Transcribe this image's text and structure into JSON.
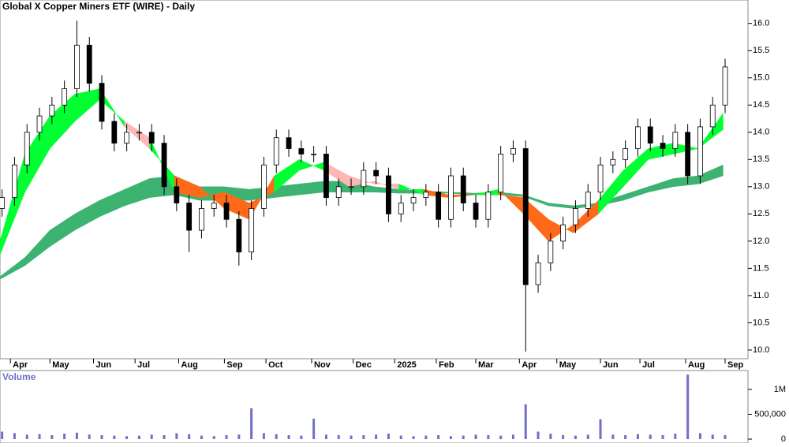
{
  "chart_data": {
    "type": "candlestick",
    "title": "Global X Copper Miners ETF (WIRE) - Daily",
    "volume_label": "Volume",
    "xlim": [
      0,
      360
    ],
    "xticks": [
      {
        "value": 5,
        "label": "Apr"
      },
      {
        "value": 24,
        "label": "May"
      },
      {
        "value": 45,
        "label": "Jun"
      },
      {
        "value": 65,
        "label": "Jul"
      },
      {
        "value": 86,
        "label": "Aug"
      },
      {
        "value": 108,
        "label": "Sep"
      },
      {
        "value": 128,
        "label": "Oct"
      },
      {
        "value": 150,
        "label": "Nov"
      },
      {
        "value": 170,
        "label": "Dec"
      },
      {
        "value": 190,
        "label": "2025"
      },
      {
        "value": 210,
        "label": "Feb"
      },
      {
        "value": 229,
        "label": "Mar"
      },
      {
        "value": 250,
        "label": "Apr"
      },
      {
        "value": 268,
        "label": "May"
      },
      {
        "value": 289,
        "label": "Jun"
      },
      {
        "value": 308,
        "label": "Jul"
      },
      {
        "value": 330,
        "label": "Aug"
      },
      {
        "value": 349,
        "label": "Sep"
      }
    ],
    "ylim": [
      9.84,
      16.43
    ],
    "yticks": [
      {
        "value": 10,
        "label": "10.0"
      },
      10.5,
      {
        "value": 11,
        "label": "11.0"
      },
      11.5,
      {
        "value": 12,
        "label": "12.0"
      },
      12.5,
      {
        "value": 13,
        "label": "13.0"
      },
      13.5,
      {
        "value": 14,
        "label": "14.0"
      },
      14.5,
      {
        "value": 15,
        "label": "15.0"
      },
      15.5,
      {
        "value": 16,
        "label": "16.0"
      }
    ],
    "up_color": "#ffffff",
    "down_color": "#000000",
    "candles": {
      "x": [
        1,
        7,
        13,
        19,
        25,
        31,
        37,
        43,
        49,
        55,
        61,
        67,
        73,
        79,
        85,
        91,
        97,
        103,
        109,
        115,
        121,
        127,
        133,
        139,
        145,
        151,
        157,
        163,
        169,
        175,
        181,
        187,
        193,
        199,
        205,
        211,
        217,
        223,
        229,
        235,
        241,
        247,
        253,
        259,
        265,
        271,
        277,
        283,
        289,
        295,
        301,
        307,
        313,
        319,
        325,
        331,
        337,
        343,
        349
      ],
      "open": [
        12.6,
        12.8,
        13.4,
        14.0,
        14.3,
        14.5,
        14.8,
        15.6,
        14.9,
        14.2,
        13.8,
        14.0,
        14.0,
        13.8,
        13.0,
        12.7,
        12.2,
        12.6,
        12.7,
        12.4,
        11.8,
        12.6,
        13.4,
        13.9,
        13.7,
        13.6,
        13.6,
        12.8,
        13.0,
        13.0,
        13.3,
        13.2,
        12.5,
        12.7,
        12.8,
        12.9,
        12.4,
        13.2,
        12.7,
        12.4,
        12.9,
        13.6,
        13.7,
        11.2,
        11.6,
        12.0,
        12.3,
        12.6,
        12.9,
        13.4,
        13.5,
        13.7,
        14.1,
        13.8,
        13.7,
        14.0,
        13.2,
        14.1,
        14.5
      ],
      "high": [
        12.95,
        13.55,
        14.15,
        14.45,
        14.65,
        14.95,
        16.05,
        15.75,
        15.05,
        14.35,
        14.15,
        14.15,
        14.15,
        13.95,
        13.15,
        12.85,
        12.75,
        12.85,
        12.85,
        12.55,
        12.75,
        13.55,
        14.05,
        14.05,
        13.85,
        13.75,
        13.75,
        13.15,
        13.15,
        13.45,
        13.45,
        13.35,
        12.85,
        12.95,
        13.05,
        13.05,
        13.35,
        13.35,
        12.85,
        13.05,
        13.75,
        13.85,
        13.85,
        11.75,
        12.15,
        12.45,
        12.75,
        13.05,
        13.55,
        13.65,
        13.85,
        14.25,
        14.25,
        13.95,
        14.15,
        14.15,
        14.25,
        14.65,
        15.35
      ],
      "low": [
        12.45,
        12.65,
        13.25,
        13.85,
        14.15,
        14.35,
        14.65,
        14.75,
        14.05,
        13.65,
        13.65,
        13.85,
        13.65,
        12.85,
        12.55,
        11.8,
        12.05,
        12.45,
        12.25,
        11.55,
        11.65,
        12.45,
        13.25,
        13.55,
        13.45,
        13.45,
        12.65,
        12.65,
        12.85,
        12.85,
        13.05,
        12.35,
        12.35,
        12.55,
        12.65,
        12.25,
        12.25,
        12.55,
        12.25,
        12.25,
        12.75,
        13.45,
        9.97,
        11.05,
        11.45,
        11.85,
        12.15,
        12.45,
        12.75,
        13.25,
        13.35,
        13.55,
        13.65,
        13.55,
        13.55,
        13.05,
        13.05,
        13.95,
        14.35
      ],
      "close": [
        12.8,
        13.4,
        14.0,
        14.3,
        14.5,
        14.8,
        15.6,
        14.9,
        14.2,
        13.8,
        14.0,
        14.0,
        13.8,
        13.0,
        12.7,
        12.2,
        12.6,
        12.7,
        12.4,
        11.8,
        12.6,
        13.4,
        13.9,
        13.7,
        13.6,
        13.6,
        12.8,
        13.0,
        13.0,
        13.3,
        13.2,
        12.5,
        12.7,
        12.8,
        12.9,
        12.4,
        13.2,
        12.7,
        12.4,
        12.9,
        13.6,
        13.7,
        11.2,
        11.6,
        12.0,
        12.3,
        12.6,
        12.9,
        13.4,
        13.5,
        13.7,
        14.1,
        13.8,
        13.7,
        14.0,
        13.2,
        14.1,
        14.5,
        15.2
      ]
    },
    "ribbons": {
      "x": [
        0,
        12,
        24,
        36,
        48,
        60,
        72,
        84,
        96,
        108,
        120,
        132,
        144,
        156,
        168,
        180,
        192,
        204,
        216,
        228,
        240,
        252,
        264,
        276,
        288,
        300,
        312,
        324,
        336,
        348
      ],
      "fast": {
        "a": [
          12.0,
          13.6,
          14.3,
          14.7,
          14.8,
          14.1,
          13.7,
          13.2,
          13.0,
          12.6,
          12.4,
          13.2,
          13.5,
          13.3,
          13.0,
          13.1,
          12.95,
          12.95,
          12.85,
          12.85,
          12.95,
          12.5,
          12.0,
          12.3,
          12.75,
          13.3,
          13.7,
          13.8,
          13.7,
          14.35
        ],
        "b": [
          11.75,
          12.9,
          13.7,
          14.2,
          14.6,
          14.2,
          13.9,
          12.9,
          12.8,
          12.9,
          12.7,
          12.9,
          13.3,
          13.45,
          13.2,
          13.05,
          13.05,
          12.85,
          12.8,
          12.85,
          12.85,
          12.8,
          12.4,
          12.15,
          12.5,
          13.0,
          13.5,
          13.6,
          13.7,
          14.05
        ]
      },
      "slow": {
        "a": [
          11.35,
          11.7,
          12.2,
          12.5,
          12.75,
          12.95,
          13.15,
          13.2,
          13.0,
          13.0,
          12.95,
          13.0,
          13.05,
          13.1,
          13.1,
          13.0,
          12.95,
          12.92,
          12.9,
          12.88,
          12.9,
          12.85,
          12.7,
          12.65,
          12.7,
          12.85,
          13.0,
          13.15,
          13.2,
          13.4
        ],
        "b": [
          11.3,
          11.55,
          11.9,
          12.2,
          12.45,
          12.65,
          12.8,
          12.85,
          12.75,
          12.75,
          12.75,
          12.8,
          12.85,
          12.9,
          12.9,
          12.9,
          12.88,
          12.88,
          12.88,
          12.85,
          12.85,
          12.82,
          12.65,
          12.6,
          12.65,
          12.75,
          12.9,
          13.0,
          13.05,
          13.2
        ]
      },
      "colors": {
        "up": "#00ff33",
        "falling": "#ffb6b6",
        "below": "#ff6a1a",
        "slow": "#3cb371"
      }
    },
    "volume": {
      "values": [
        150000,
        120000,
        90000,
        100000,
        80000,
        110000,
        130000,
        90000,
        80000,
        70000,
        60000,
        70000,
        90000,
        80000,
        120000,
        100000,
        70000,
        60000,
        80000,
        90000,
        620000,
        120000,
        100000,
        80000,
        70000,
        410000,
        90000,
        80000,
        70000,
        80000,
        90000,
        110000,
        70000,
        60000,
        70000,
        80000,
        60000,
        70000,
        90000,
        80000,
        70000,
        90000,
        700000,
        150000,
        110000,
        80000,
        70000,
        90000,
        400000,
        90000,
        80000,
        100000,
        90000,
        80000,
        110000,
        1300000,
        120000,
        90000,
        80000
      ],
      "color": "#7070c8",
      "ylim": [
        0,
        1380000
      ],
      "yticks": [
        0,
        {
          "value": 500000,
          "label": "500,000"
        },
        {
          "value": 1000000,
          "label": "1M"
        }
      ]
    }
  }
}
